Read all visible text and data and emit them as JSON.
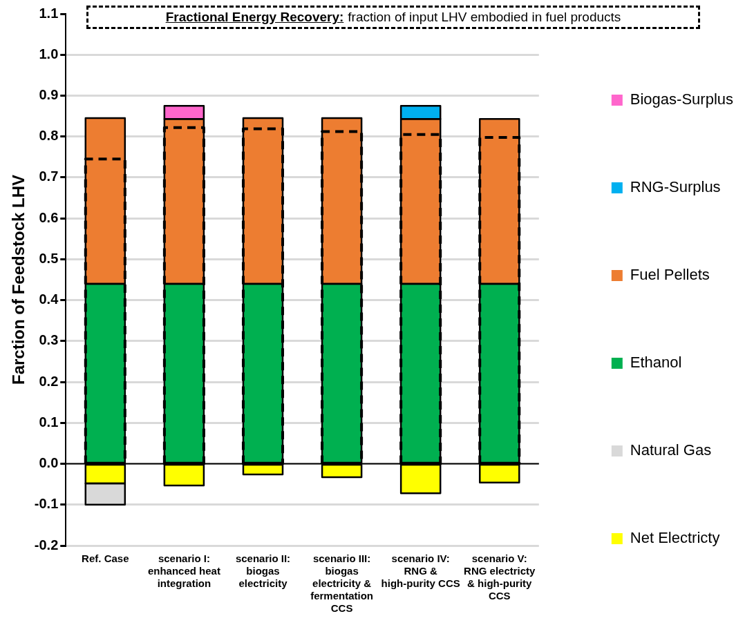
{
  "chart_data": {
    "type": "bar",
    "ylabel": "Farction of Feedstock LHV",
    "annotations": [
      "Fractional Energy Recovery:",
      "fraction of input LHV embodied in fuel products"
    ],
    "categories": [
      "Ref. Case",
      "scenario I: enhanced heat integration",
      "scenario II: biogas electricity",
      "scenario III: biogas electricity & fermentation CCS",
      "scenario IV: RNG & high-purity CCS",
      "scenario V: RNG electricty & high-purity CCS"
    ],
    "series": [
      {
        "name": "Net Electricty",
        "color": "#ffff00",
        "base": [
          0,
          0,
          0,
          0,
          0,
          0
        ],
        "values": [
          -0.048,
          -0.053,
          -0.026,
          -0.033,
          -0.072,
          -0.046
        ]
      },
      {
        "name": "Natural Gas",
        "color": "#d9d9d9",
        "base": [
          -0.048,
          null,
          null,
          null,
          null,
          null
        ],
        "values": [
          -0.052,
          null,
          null,
          null,
          null,
          null
        ]
      },
      {
        "name": "Ethanol",
        "color": "#00b050",
        "base": [
          0,
          0,
          0,
          0,
          0,
          0
        ],
        "values": [
          0.44,
          0.44,
          0.44,
          0.44,
          0.44,
          0.44
        ]
      },
      {
        "name": "Fuel Pellets",
        "color": "#ed7d31",
        "base": [
          0.44,
          0.44,
          0.44,
          0.44,
          0.44,
          0.44
        ],
        "values": [
          0.405,
          0.403,
          0.405,
          0.405,
          0.403,
          0.403
        ]
      },
      {
        "name": "RNG-Surplus",
        "color": "#00b0f0",
        "base": [
          null,
          null,
          null,
          null,
          0.843,
          null
        ],
        "values": [
          null,
          null,
          null,
          null,
          0.032,
          null
        ]
      },
      {
        "name": "Biogas-Surplus",
        "color": "#ff66cc",
        "base": [
          null,
          0.843,
          null,
          null,
          null,
          null
        ],
        "values": [
          null,
          0.032,
          null,
          null,
          null,
          null
        ]
      },
      {
        "type": "bar",
        "color": "#000000",
        "line_style": "dashed",
        "base": [
          0,
          0,
          0,
          0,
          0,
          0
        ],
        "values": [
          0.745,
          0.822,
          0.819,
          0.812,
          0.805,
          0.798
        ]
      }
    ],
    "ylim": [
      -0.2,
      1.1
    ],
    "yticks": [
      -0.2,
      -0.1,
      {
        "value": 0,
        "label": "0.0"
      },
      0.1,
      0.2,
      0.3,
      0.4,
      0.5,
      0.6,
      0.7,
      0.8,
      0.9,
      {
        "value": 1,
        "label": "1.0"
      },
      1.1
    ],
    "grid": "y",
    "legend": "right"
  }
}
